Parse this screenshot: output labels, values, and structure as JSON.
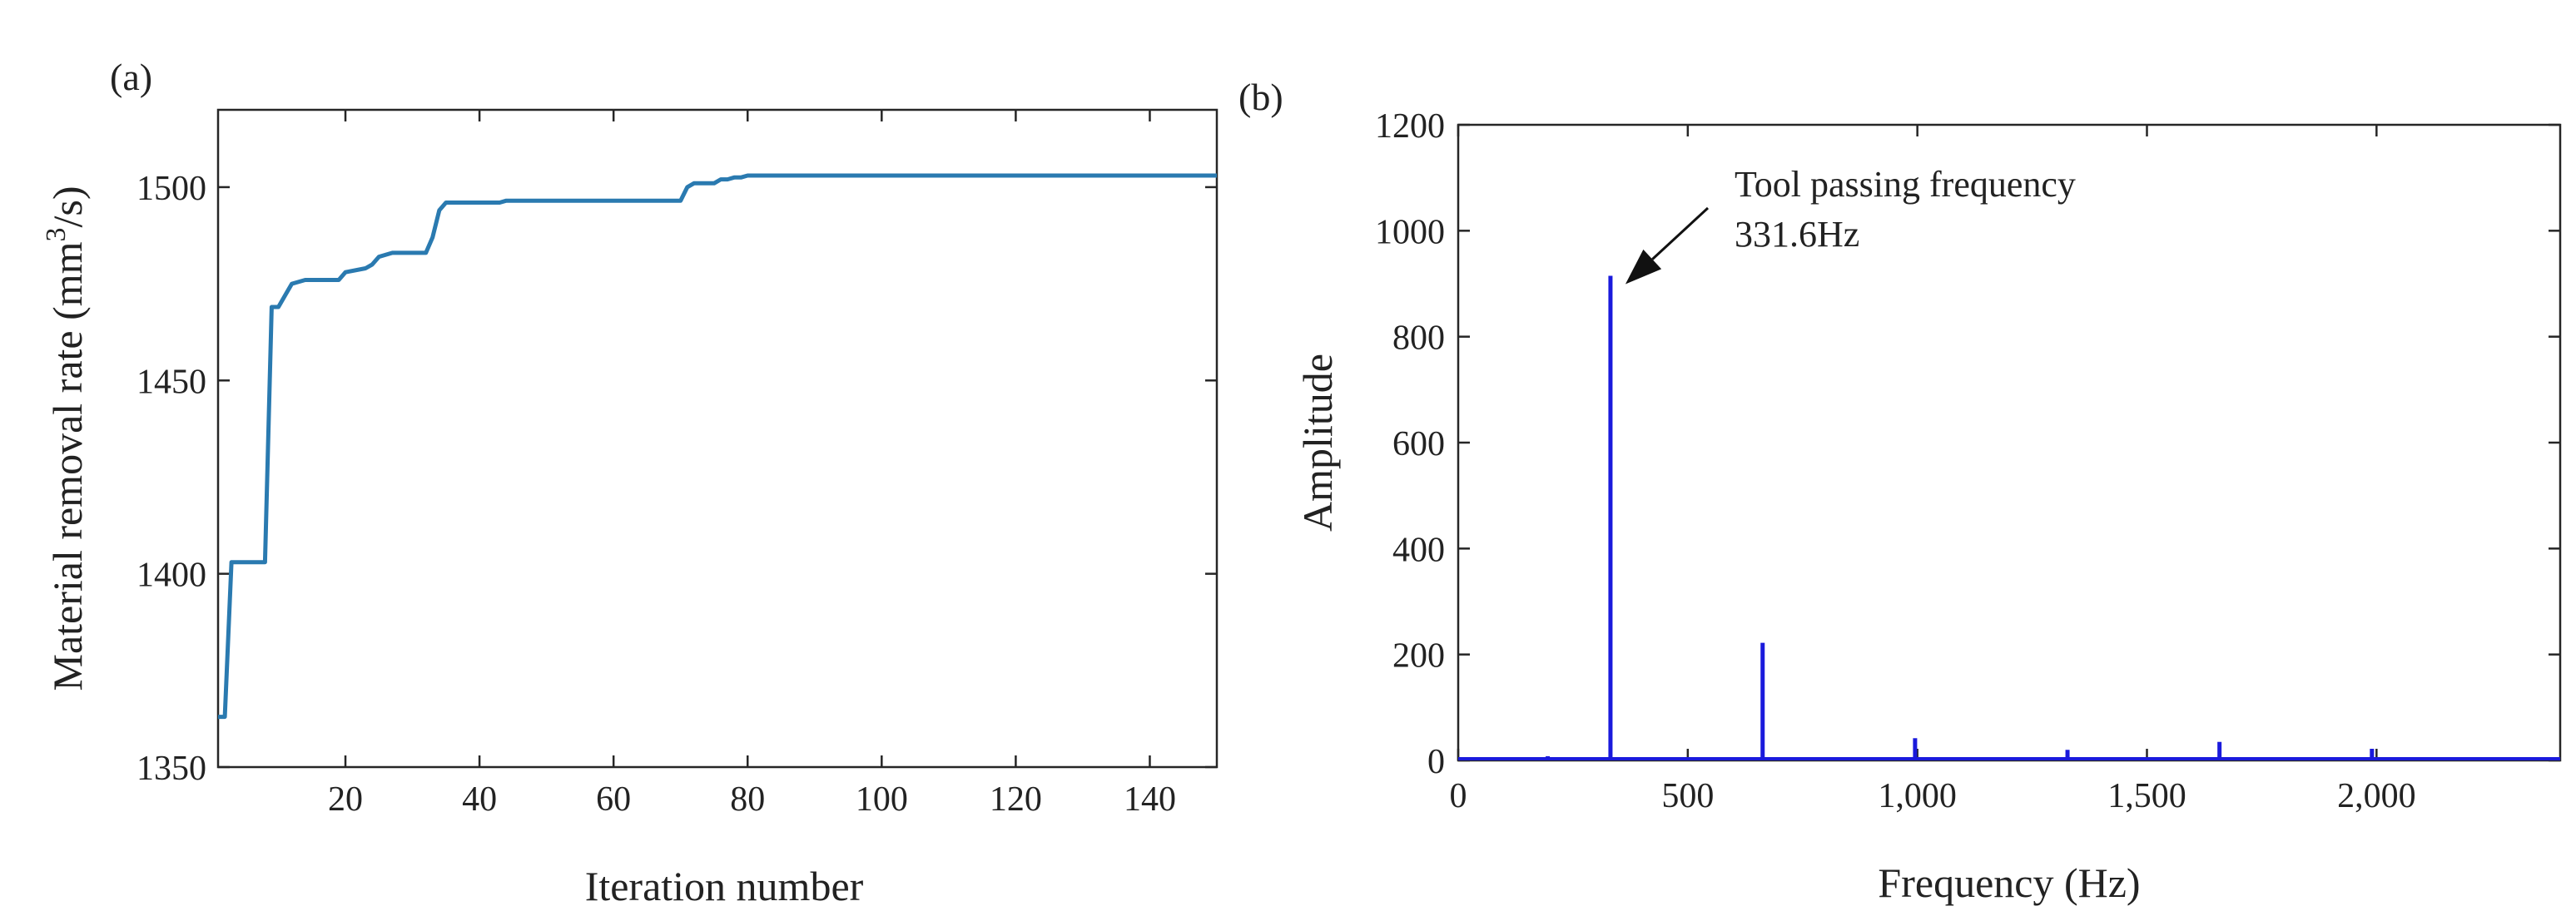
{
  "chart_data": [
    {
      "type": "line",
      "panel_label": "(a)",
      "xlabel": "Iteration number",
      "ylabel": "Material removal rate (mm",
      "ylabel_sup": "3",
      "ylabel_tail": "/s)",
      "xlim": [
        1,
        150
      ],
      "ylim": [
        1350,
        1520
      ],
      "xticks": [
        20,
        40,
        60,
        80,
        100,
        120,
        140
      ],
      "yticks": [
        1350,
        1400,
        1450,
        1500
      ],
      "line_color": "#2a7ab0",
      "x": [
        1,
        2,
        3,
        8,
        9,
        10,
        11,
        12,
        14,
        19,
        20,
        23,
        24,
        25,
        27,
        32,
        33,
        34,
        35,
        43,
        44,
        70,
        71,
        72,
        75,
        76,
        77,
        78,
        79,
        80,
        150
      ],
      "y": [
        1363,
        1363,
        1403,
        1403,
        1469,
        1469,
        1472,
        1475,
        1476,
        1476,
        1478,
        1479,
        1480,
        1482,
        1483,
        1483,
        1487,
        1494,
        1496,
        1496,
        1496.5,
        1496.5,
        1500,
        1501,
        1501,
        1502,
        1502,
        1502.5,
        1502.5,
        1503,
        1503
      ]
    },
    {
      "type": "line",
      "panel_label": "(b)",
      "xlabel": "Frequency (Hz)",
      "ylabel": "Amplitude",
      "xlim": [
        0,
        2400
      ],
      "ylim": [
        0,
        1200
      ],
      "xticks": [
        0,
        500,
        1000,
        1500,
        2000
      ],
      "xtick_labels": [
        "0",
        "500",
        "1,000",
        "1,500",
        "2,000"
      ],
      "yticks": [
        0,
        200,
        400,
        600,
        800,
        1000,
        1200
      ],
      "line_color": "#1a1adc",
      "peaks": [
        {
          "x": 195,
          "y": 8
        },
        {
          "x": 331.6,
          "y": 915
        },
        {
          "x": 663,
          "y": 222
        },
        {
          "x": 995,
          "y": 42
        },
        {
          "x": 1327,
          "y": 20
        },
        {
          "x": 1658,
          "y": 35
        },
        {
          "x": 1990,
          "y": 22
        }
      ],
      "annotation": {
        "line1": "Tool passing frequency",
        "line2": "331.6Hz",
        "target_x": 331.6,
        "target_y": 915
      }
    }
  ]
}
